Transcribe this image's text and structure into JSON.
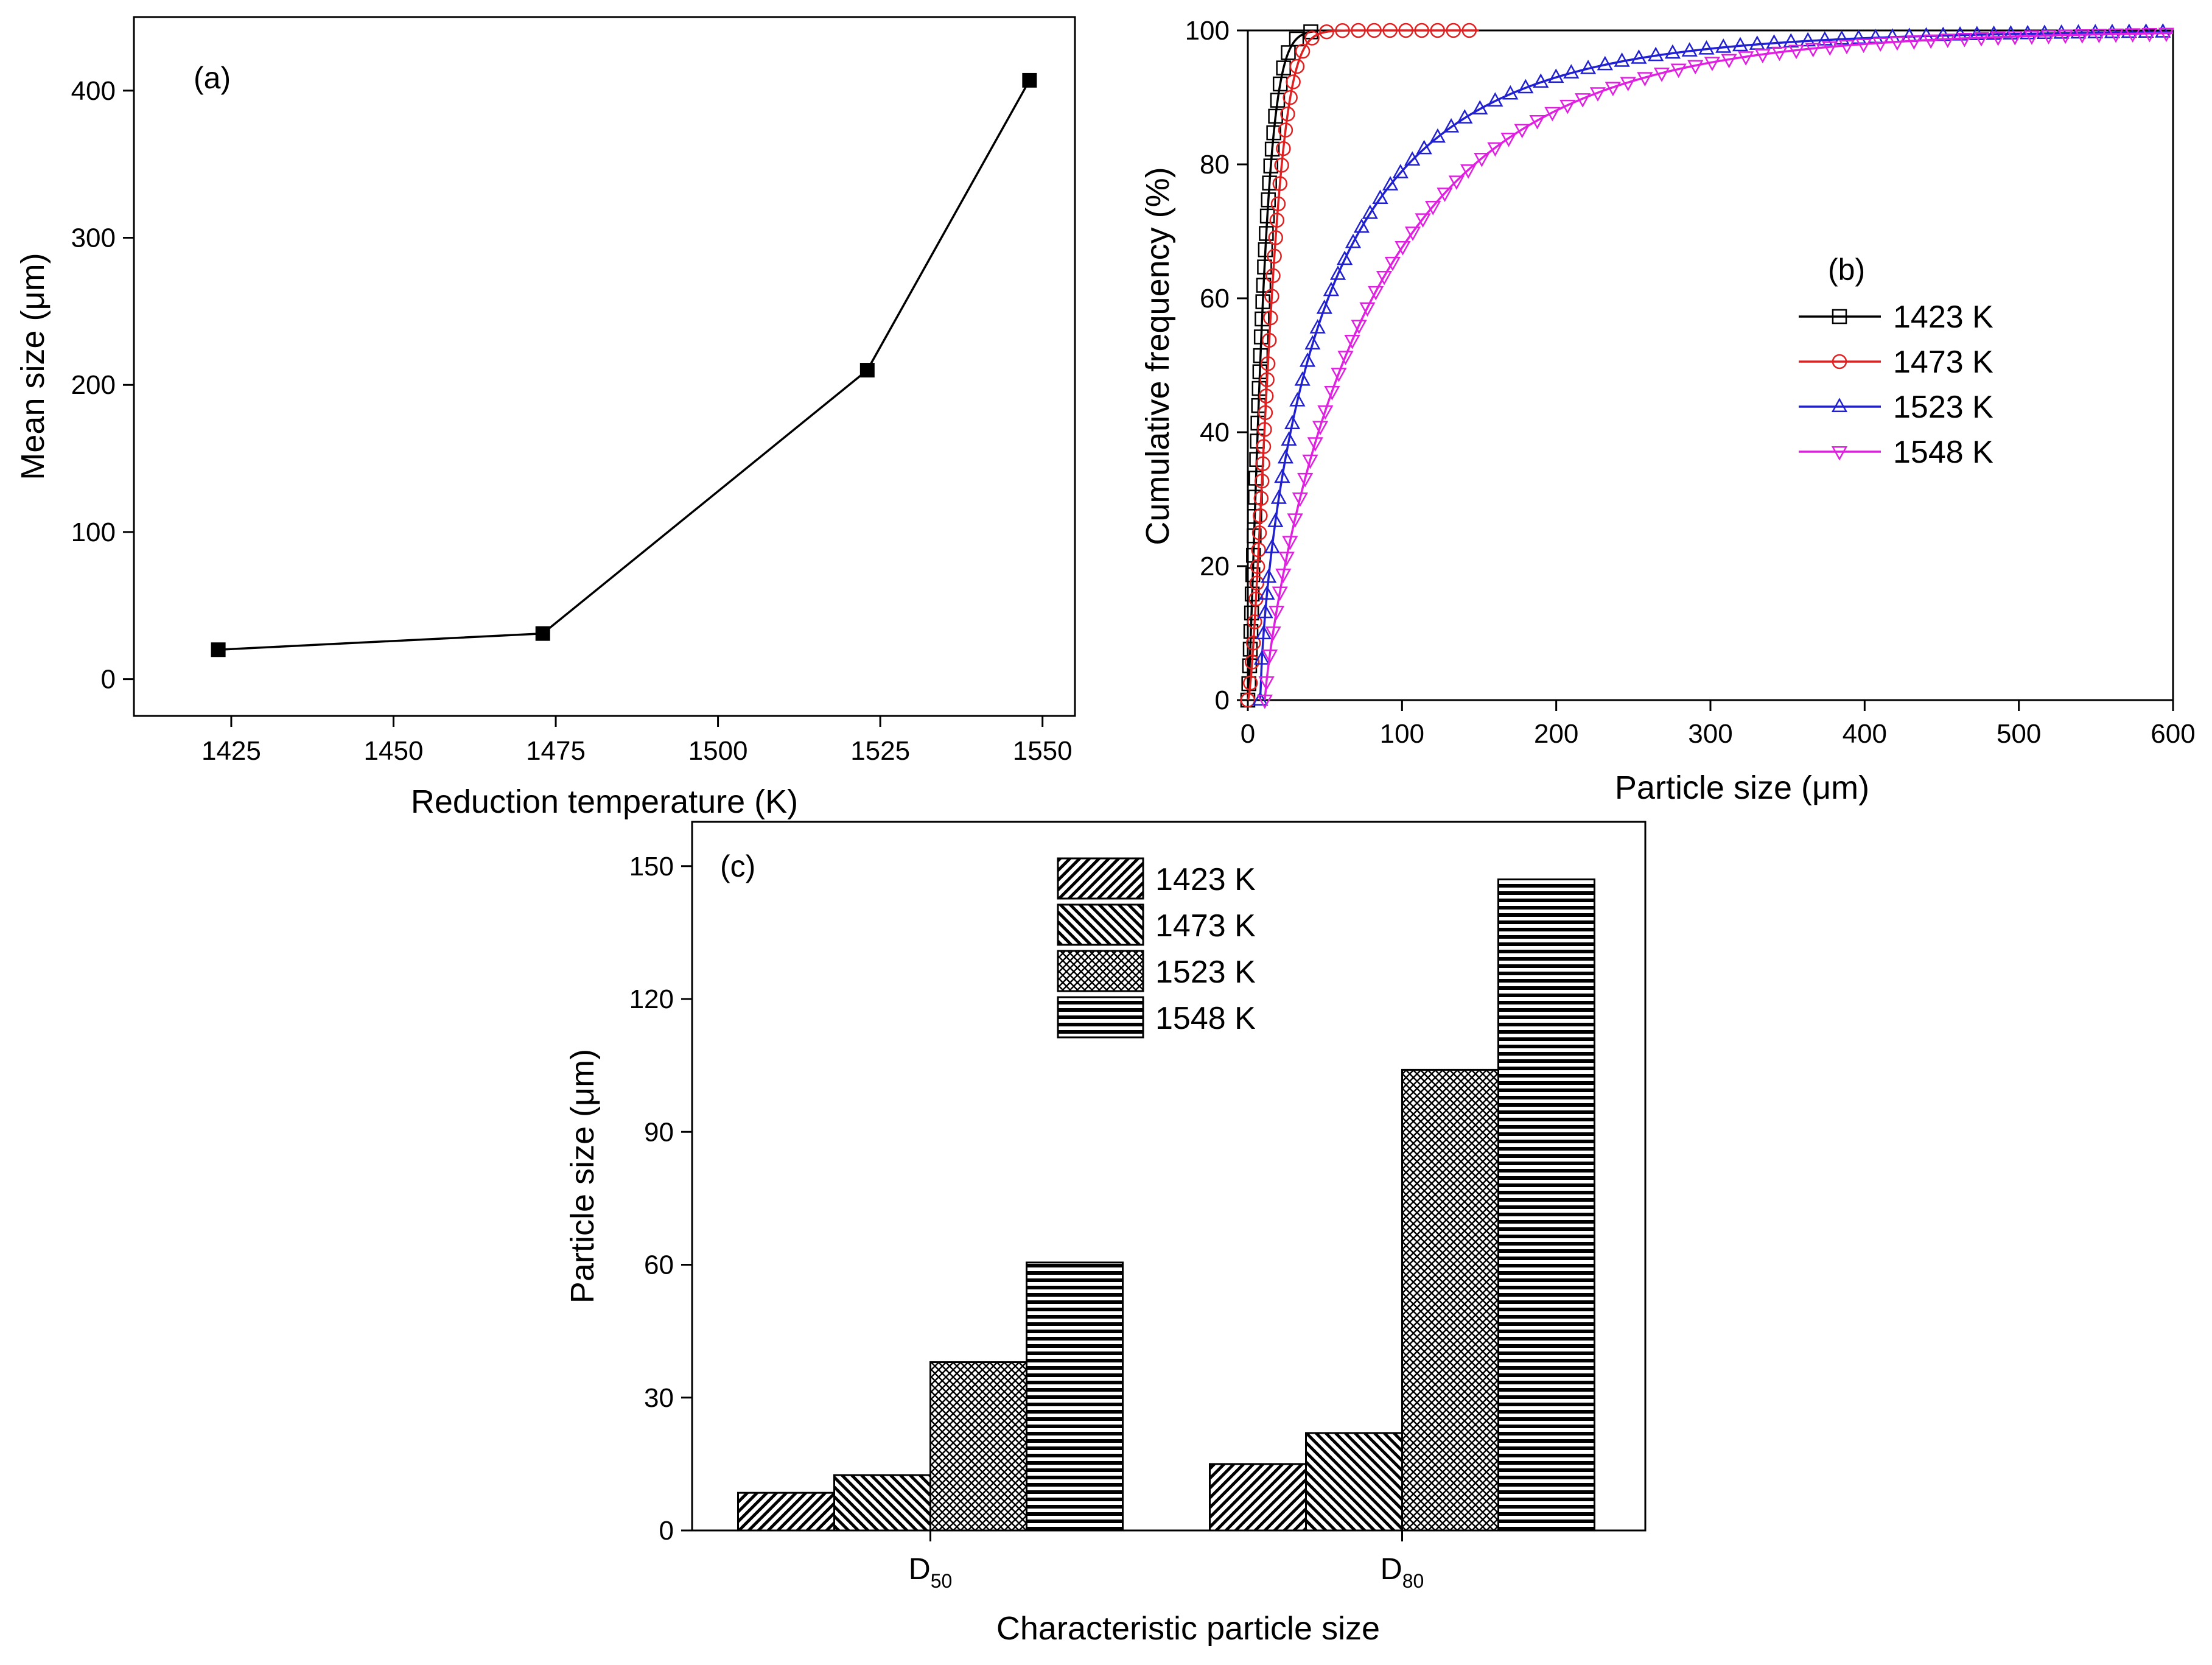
{
  "chart_data": [
    {
      "panel": "(a)",
      "type": "line",
      "xlabel": "Reduction temperature (K)",
      "ylabel": "Mean size (μm)",
      "xlim": [
        1410,
        1555
      ],
      "ylim": [
        -25,
        450
      ],
      "x_ticks": [
        "1425",
        "1450",
        "1475",
        "1500",
        "1525",
        "1550"
      ],
      "y_ticks": [
        "0",
        "100",
        "200",
        "300",
        "400"
      ],
      "series": [
        {
          "x": [
            1423,
            1473,
            1523,
            1548
          ],
          "y": [
            20,
            31,
            210,
            407
          ],
          "color": "#000000",
          "marker": "filled-square"
        }
      ]
    },
    {
      "panel": "(b)",
      "type": "line",
      "xlabel": "Particle size (μm)",
      "ylabel": "Cumulative frequency (%)",
      "xlim": [
        0,
        600
      ],
      "ylim": [
        0,
        100
      ],
      "x_ticks": [
        "0",
        "100",
        "200",
        "300",
        "400",
        "500",
        "600"
      ],
      "y_ticks": [
        "0",
        "20",
        "40",
        "60",
        "80",
        "100"
      ],
      "legend_position": "right",
      "series": [
        {
          "name": "1423 K",
          "color": "#000000",
          "marker": "open-square",
          "kind": "rr",
          "D50": 8,
          "D80": 15,
          "xmax": 45
        },
        {
          "name": "1473 K",
          "color": "#e02020",
          "marker": "open-circle",
          "kind": "rr",
          "D50": 13,
          "D80": 22,
          "xmax": 150
        },
        {
          "name": "1523 K",
          "color": "#2020d0",
          "marker": "open-triangle-up",
          "kind": "rr",
          "x0": 8,
          "D50": 38,
          "D80": 104,
          "xmax": 600
        },
        {
          "name": "1548 K",
          "color": "#e020e0",
          "marker": "open-triangle-down",
          "kind": "rr",
          "x0": 11,
          "D50": 61,
          "D80": 147,
          "xmax": 600
        }
      ]
    },
    {
      "panel": "(c)",
      "type": "bar",
      "xlabel": "Characteristic particle size",
      "ylabel": "Particle size (μm)",
      "ylim": [
        0,
        160
      ],
      "y_ticks": [
        "0",
        "30",
        "60",
        "90",
        "120",
        "150"
      ],
      "categories": [
        {
          "main": "D",
          "sub": "50"
        },
        {
          "main": "D",
          "sub": "80"
        }
      ],
      "legend_position": "top-center",
      "series": [
        {
          "name": "1423 K",
          "values": [
            8.5,
            15
          ],
          "pattern": "diagonal-up"
        },
        {
          "name": "1473 K",
          "values": [
            12.5,
            22
          ],
          "pattern": "diagonal-down"
        },
        {
          "name": "1523 K",
          "values": [
            38,
            104
          ],
          "pattern": "crosshatch"
        },
        {
          "name": "1548 K",
          "values": [
            60.5,
            147
          ],
          "pattern": "horizontal"
        }
      ]
    }
  ]
}
